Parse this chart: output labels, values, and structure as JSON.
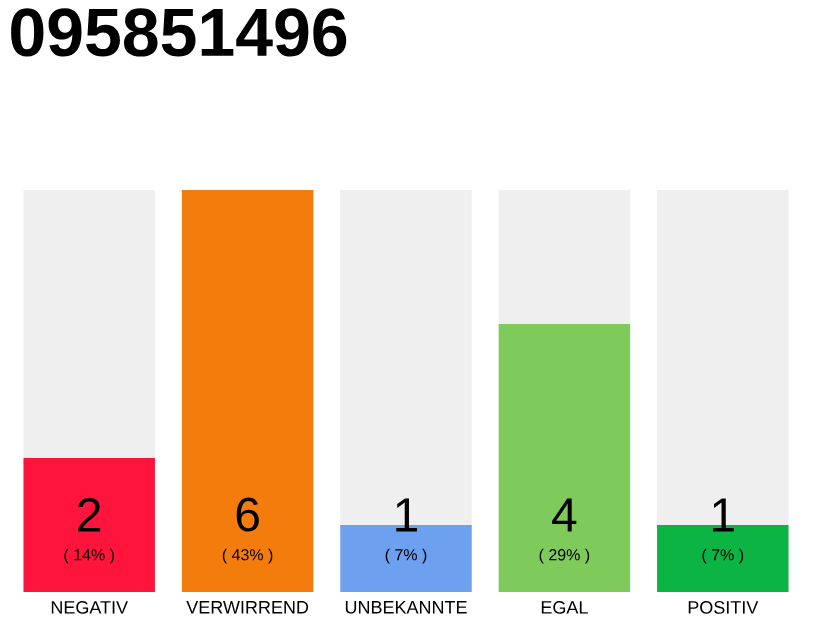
{
  "chart_data": {
    "type": "bar",
    "title": "095851496",
    "categories": [
      "NEGATIV",
      "VERWIRREND",
      "UNBEKANNTE",
      "EGAL",
      "POSITIV"
    ],
    "values": [
      2,
      6,
      1,
      4,
      1
    ],
    "colors": [
      "#ff143c",
      "#f47c0c",
      "#6ea0f0",
      "#7ecb5c",
      "#0cb444"
    ],
    "ylim": [
      0,
      6
    ],
    "data_labels": true,
    "annotations": [
      "( 14% )",
      "( 43% )",
      "( 7% )",
      "( 29% )",
      "( 7% )"
    ]
  }
}
